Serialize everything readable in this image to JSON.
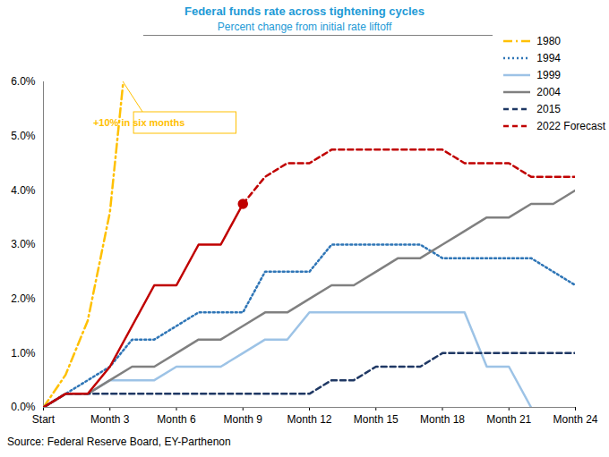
{
  "chart_data": {
    "type": "line",
    "title": "Federal funds rate across tightening cycles",
    "subtitle": "Percent change from initial rate liftoff",
    "source": "Source: Federal Reserve Board, EY-Parthenon",
    "x": [
      0,
      1,
      2,
      3,
      4,
      5,
      6,
      7,
      8,
      9,
      10,
      11,
      12,
      13,
      14,
      15,
      16,
      17,
      18,
      19,
      20,
      21,
      22,
      23,
      24
    ],
    "xlim": [
      0,
      24
    ],
    "xticks": [
      {
        "value": 0,
        "label": "Start"
      },
      {
        "value": 3,
        "label": "Month 3"
      },
      {
        "value": 6,
        "label": "Month 6"
      },
      {
        "value": 9,
        "label": "Month 9"
      },
      {
        "value": 12,
        "label": "Month 12"
      },
      {
        "value": 15,
        "label": "Month 15"
      },
      {
        "value": 18,
        "label": "Month 18"
      },
      {
        "value": 21,
        "label": "Month 21"
      },
      {
        "value": 24,
        "label": "Month 24"
      }
    ],
    "ylim": [
      0,
      6
    ],
    "yticks": [
      {
        "value": 0,
        "label": "0.0%"
      },
      {
        "value": 1,
        "label": "1.0%"
      },
      {
        "value": 2,
        "label": "2.0%"
      },
      {
        "value": 3,
        "label": "3.0%"
      },
      {
        "value": 4,
        "label": "4.0%"
      },
      {
        "value": 5,
        "label": "5.0%"
      },
      {
        "value": 6,
        "label": "6.0%"
      }
    ],
    "grid": false,
    "legend": "top right",
    "series": [
      {
        "name": "1980",
        "color": "#ffc000",
        "line_style": "dash-dot",
        "x": [
          0,
          1,
          2,
          3,
          3.6
        ],
        "values": [
          0,
          0.6,
          1.6,
          3.6,
          6.0
        ],
        "annotation": "+10% in six months"
      },
      {
        "name": "1994",
        "color": "#2e75b6",
        "line_style": "dotted",
        "values": [
          0,
          0.25,
          0.5,
          0.75,
          1.25,
          1.25,
          1.5,
          1.75,
          1.75,
          1.75,
          2.5,
          2.5,
          2.5,
          3.0,
          3.0,
          3.0,
          3.0,
          3.0,
          2.75,
          2.75,
          2.75,
          2.75,
          2.75,
          2.5,
          2.25
        ]
      },
      {
        "name": "1999",
        "color": "#9dc3e6",
        "line_style": "solid",
        "values": [
          0,
          0.25,
          0.25,
          0.5,
          0.5,
          0.5,
          0.75,
          0.75,
          0.75,
          1.0,
          1.25,
          1.25,
          1.75,
          1.75,
          1.75,
          1.75,
          1.75,
          1.75,
          1.75,
          1.75,
          0.75,
          0.75,
          0,
          null,
          null
        ]
      },
      {
        "name": "2004",
        "color": "#808080",
        "line_style": "solid",
        "values": [
          0,
          0.25,
          0.25,
          0.5,
          0.75,
          0.75,
          1.0,
          1.25,
          1.25,
          1.5,
          1.75,
          1.75,
          2.0,
          2.25,
          2.25,
          2.5,
          2.75,
          2.75,
          3.0,
          3.25,
          3.5,
          3.5,
          3.75,
          3.75,
          4.0
        ]
      },
      {
        "name": "2015",
        "color": "#1f3864",
        "line_style": "dashed",
        "values": [
          0,
          0.25,
          0.25,
          0.25,
          0.25,
          0.25,
          0.25,
          0.25,
          0.25,
          0.25,
          0.25,
          0.25,
          0.25,
          0.5,
          0.5,
          0.75,
          0.75,
          0.75,
          1.0,
          1.0,
          1.0,
          1.0,
          1.0,
          1.0,
          1.0
        ]
      },
      {
        "name": null,
        "color": "#c00000",
        "line_style": "solid",
        "marker": "end",
        "values": [
          0,
          0.25,
          0.25,
          0.75,
          1.5,
          2.25,
          2.25,
          3.0,
          3.0,
          3.75,
          null,
          null,
          null,
          null,
          null,
          null,
          null,
          null,
          null,
          null,
          null,
          null,
          null,
          null,
          null
        ]
      },
      {
        "name": "2022 Forecast",
        "color": "#c00000",
        "line_style": "dashed",
        "values": [
          null,
          null,
          null,
          null,
          null,
          null,
          null,
          null,
          null,
          3.75,
          4.25,
          4.5,
          4.5,
          4.75,
          4.75,
          4.75,
          4.75,
          4.75,
          4.75,
          4.5,
          4.5,
          4.5,
          4.25,
          4.25,
          4.25
        ]
      }
    ]
  }
}
